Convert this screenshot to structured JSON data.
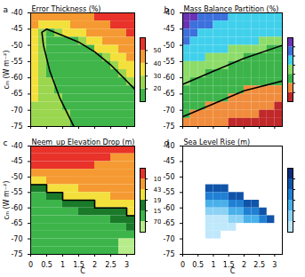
{
  "chart_data": [
    {
      "type": "heatmap",
      "panel_label": "a",
      "title": "Error Thickness (%)",
      "y_label": "cₘ (W m⁻²)",
      "tick_labels": "y",
      "xlim": [
        0,
        3.25
      ],
      "xticks": [
        0,
        0.5,
        1,
        1.5,
        2,
        2.5,
        3
      ],
      "ylim": [
        -75,
        -40
      ],
      "yticks": [
        -75,
        -70,
        -65,
        -60,
        -55,
        -50,
        -45,
        -40
      ],
      "x_edges": [
        0,
        0.25,
        0.5,
        0.75,
        1,
        1.25,
        1.5,
        1.75,
        2,
        2.25,
        2.5,
        2.75,
        3,
        3.25
      ],
      "y_edges": [
        -40,
        -42.5,
        -45,
        -47.5,
        -50,
        -52.5,
        -55,
        -57.5,
        -60,
        -62.5,
        -65,
        -67.5,
        -70,
        -72.5,
        -75
      ],
      "values": [
        [
          45,
          45,
          45,
          45,
          45,
          45,
          45,
          45,
          55,
          55,
          55,
          55,
          55
        ],
        [
          45,
          35,
          35,
          35,
          35,
          45,
          45,
          45,
          45,
          45,
          55,
          55,
          55
        ],
        [
          35,
          25,
          15,
          25,
          35,
          35,
          35,
          45,
          45,
          45,
          45,
          45,
          55
        ],
        [
          35,
          25,
          15,
          15,
          15,
          15,
          25,
          35,
          35,
          45,
          45,
          45,
          45
        ],
        [
          35,
          25,
          15,
          15,
          15,
          15,
          15,
          15,
          35,
          35,
          35,
          45,
          45
        ],
        [
          35,
          25,
          15,
          15,
          15,
          15,
          15,
          15,
          15,
          25,
          35,
          35,
          45
        ],
        [
          35,
          25,
          15,
          15,
          15,
          15,
          15,
          15,
          15,
          15,
          25,
          35,
          35
        ],
        [
          35,
          25,
          15,
          15,
          15,
          15,
          15,
          15,
          15,
          15,
          15,
          25,
          35
        ],
        [
          35,
          25,
          25,
          15,
          15,
          15,
          15,
          15,
          15,
          15,
          15,
          15,
          25
        ],
        [
          35,
          25,
          25,
          15,
          15,
          15,
          15,
          15,
          15,
          15,
          15,
          15,
          15
        ],
        [
          35,
          25,
          25,
          25,
          15,
          15,
          15,
          15,
          15,
          15,
          15,
          15,
          15
        ],
        [
          25,
          25,
          25,
          25,
          15,
          15,
          15,
          15,
          15,
          15,
          15,
          15,
          15
        ],
        [
          25,
          25,
          25,
          25,
          25,
          15,
          15,
          15,
          15,
          15,
          15,
          15,
          15
        ],
        [
          25,
          25,
          25,
          25,
          25,
          15,
          15,
          15,
          15,
          15,
          15,
          15,
          15
        ]
      ],
      "colorbar": {
        "ticks": [
          20,
          30,
          40,
          50
        ],
        "colors": [
          "#3fb54a",
          "#9ad64e",
          "#f4e03c",
          "#f59a32",
          "#e8322a"
        ]
      },
      "contours": [
        {
          "color": "#000000",
          "x": [
            1.35,
            1.2,
            0.9,
            0.6,
            0.4,
            0.35,
            0.5,
            1.0,
            1.5,
            2.0,
            2.5,
            3.0,
            3.25
          ],
          "y": [
            -75,
            -72,
            -66,
            -58,
            -50,
            -46,
            -45,
            -47,
            -49,
            -52,
            -56,
            -61,
            -63.5
          ]
        }
      ]
    },
    {
      "type": "heatmap",
      "panel_label": "b",
      "title": "Mass Balance Partition (%)",
      "tick_labels": "y",
      "xlim": [
        0,
        3.25
      ],
      "xticks": [
        0,
        0.5,
        1,
        1.5,
        2,
        2.5,
        3
      ],
      "ylim": [
        -75,
        -40
      ],
      "yticks": [
        -75,
        -70,
        -65,
        -60,
        -55,
        -50,
        -45,
        -40
      ],
      "x_edges": [
        0,
        0.25,
        0.5,
        0.75,
        1,
        1.25,
        1.5,
        1.75,
        2,
        2.25,
        2.5,
        2.75,
        3,
        3.25
      ],
      "y_edges": [
        -40,
        -42.5,
        -45,
        -47.5,
        -50,
        -52.5,
        -55,
        -57.5,
        -60,
        -62.5,
        -65,
        -67.5,
        -70,
        -72.5,
        -75
      ],
      "values": [
        [
          65,
          65,
          55,
          55,
          55,
          55,
          45,
          45,
          45,
          45,
          45,
          45,
          45
        ],
        [
          65,
          55,
          55,
          55,
          45,
          45,
          45,
          45,
          45,
          45,
          45,
          45,
          45
        ],
        [
          55,
          55,
          45,
          45,
          45,
          45,
          45,
          45,
          45,
          45,
          45,
          45,
          45
        ],
        [
          55,
          45,
          45,
          45,
          45,
          45,
          45,
          45,
          45,
          45,
          35,
          35,
          35
        ],
        [
          45,
          45,
          45,
          45,
          45,
          45,
          35,
          35,
          35,
          35,
          35,
          25,
          25
        ],
        [
          45,
          45,
          45,
          35,
          35,
          35,
          35,
          35,
          25,
          25,
          25,
          25,
          25
        ],
        [
          35,
          35,
          35,
          35,
          35,
          35,
          25,
          25,
          25,
          25,
          25,
          25,
          25
        ],
        [
          35,
          35,
          35,
          25,
          25,
          25,
          25,
          25,
          25,
          25,
          25,
          25,
          25
        ],
        [
          35,
          25,
          25,
          25,
          25,
          25,
          25,
          25,
          25,
          25,
          25,
          25,
          25
        ],
        [
          25,
          25,
          25,
          25,
          25,
          25,
          25,
          25,
          15,
          15,
          15,
          15,
          15
        ],
        [
          25,
          25,
          25,
          25,
          25,
          25,
          15,
          15,
          15,
          15,
          15,
          15,
          15
        ],
        [
          25,
          25,
          25,
          15,
          15,
          15,
          15,
          15,
          15,
          15,
          15,
          15,
          5
        ],
        [
          25,
          15,
          15,
          15,
          15,
          15,
          15,
          15,
          15,
          15,
          5,
          5,
          5
        ],
        [
          15,
          15,
          15,
          15,
          15,
          15,
          5,
          5,
          5,
          5,
          5,
          5,
          5
        ]
      ],
      "colorbar": {
        "ticks": [
          10,
          20,
          30,
          40,
          50,
          60
        ],
        "tick_labels": false,
        "colors": [
          "#c0282a",
          "#f08c3c",
          "#3cb44a",
          "#8ddc6a",
          "#40d0ec",
          "#3c70dc",
          "#6a32b4"
        ]
      },
      "contours": [
        {
          "color": "#000000",
          "x": [
            0,
            1,
            2,
            3.25
          ],
          "y": [
            -62,
            -58,
            -54,
            -50
          ]
        },
        {
          "color": "#000000",
          "x": [
            0,
            1,
            2,
            3.25
          ],
          "y": [
            -72,
            -68,
            -64,
            -61
          ]
        }
      ]
    },
    {
      "type": "heatmap",
      "panel_label": "c",
      "title": "Neem_up Elevation Drop (m)",
      "y_label": "cₘ (W m⁻²)",
      "x_label": "C",
      "xlim": [
        0,
        3.25
      ],
      "xticks": [
        0,
        0.5,
        1,
        1.5,
        2,
        2.5,
        3
      ],
      "ylim": [
        -75,
        -40
      ],
      "yticks": [
        -75,
        -70,
        -65,
        -60,
        -55,
        -50,
        -45,
        -40
      ],
      "x_edges": [
        0,
        0.25,
        0.5,
        0.75,
        1,
        1.25,
        1.5,
        1.75,
        2,
        2.25,
        2.5,
        2.75,
        3,
        3.25
      ],
      "y_edges": [
        -40,
        -42.5,
        -45,
        -47.5,
        -50,
        -52.5,
        -55,
        -57.5,
        -60,
        -62.5,
        -65,
        -67.5,
        -70,
        -72.5,
        -75
      ],
      "values": [
        [
          1200,
          1200,
          1200,
          1200,
          1200,
          1200,
          1200,
          1200,
          1200,
          1200,
          1200,
          1200,
          1200
        ],
        [
          1200,
          1200,
          1200,
          1200,
          1200,
          1200,
          1200,
          1200,
          1200,
          1200,
          700,
          700,
          700
        ],
        [
          1200,
          1200,
          1200,
          1200,
          1200,
          1200,
          1200,
          1200,
          700,
          700,
          700,
          700,
          700
        ],
        [
          700,
          700,
          700,
          700,
          700,
          700,
          700,
          700,
          700,
          700,
          700,
          700,
          700
        ],
        [
          300,
          300,
          700,
          700,
          700,
          700,
          700,
          700,
          700,
          700,
          700,
          700,
          700
        ],
        [
          170,
          170,
          300,
          300,
          300,
          300,
          700,
          700,
          700,
          700,
          700,
          700,
          700
        ],
        [
          100,
          100,
          170,
          170,
          300,
          300,
          300,
          300,
          300,
          300,
          700,
          700,
          700
        ],
        [
          100,
          100,
          100,
          100,
          170,
          170,
          170,
          170,
          300,
          300,
          300,
          300,
          300
        ],
        [
          100,
          100,
          100,
          100,
          100,
          100,
          170,
          170,
          170,
          170,
          170,
          170,
          300
        ],
        [
          100,
          100,
          100,
          100,
          100,
          100,
          100,
          100,
          100,
          100,
          170,
          170,
          170
        ],
        [
          100,
          100,
          100,
          100,
          100,
          100,
          100,
          100,
          100,
          100,
          100,
          100,
          170
        ],
        [
          100,
          100,
          100,
          100,
          100,
          100,
          100,
          100,
          100,
          100,
          100,
          100,
          100
        ],
        [
          100,
          100,
          100,
          100,
          100,
          100,
          100,
          100,
          100,
          100,
          100,
          50,
          50
        ],
        [
          100,
          100,
          100,
          100,
          100,
          100,
          100,
          100,
          100,
          100,
          100,
          50,
          50
        ]
      ],
      "colorbar": {
        "ticks": [
          70,
          150,
          190,
          430,
          1000
        ],
        "colors": [
          "#b6ec8a",
          "#3cb44a",
          "#1a7a2a",
          "#f4e03c",
          "#f59a32",
          "#e8322a"
        ]
      },
      "contours": [
        {
          "color": "#000000",
          "x": [
            0,
            0.5,
            0.5,
            1,
            1,
            2,
            2,
            3,
            3,
            3.25
          ],
          "y": [
            -52.5,
            -52.5,
            -55,
            -55,
            -57.5,
            -57.5,
            -60,
            -60,
            -62.5,
            -62.5
          ]
        }
      ]
    },
    {
      "type": "heatmap",
      "panel_label": "d",
      "title": "Sea Level Rise (m)",
      "x_label": "C",
      "xlim": [
        0,
        3.25
      ],
      "xticks": [
        0,
        0.5,
        1,
        1.5,
        2,
        2.5,
        3
      ],
      "ylim": [
        -75,
        -40
      ],
      "yticks": [
        -75,
        -70,
        -65,
        -60,
        -55,
        -50,
        -45,
        -40
      ],
      "x_edges": [
        0,
        0.25,
        0.5,
        0.75,
        1,
        1.25,
        1.5,
        1.75,
        2,
        2.25,
        2.5,
        2.75,
        3,
        3.25
      ],
      "y_edges": [
        -40,
        -42.5,
        -45,
        -47.5,
        -50,
        -52.5,
        -55,
        -57.5,
        -60,
        -62.5,
        -65,
        -67.5,
        -70,
        -72.5,
        -75
      ],
      "values": [
        [
          null,
          null,
          null,
          null,
          null,
          null,
          null,
          null,
          null,
          null,
          null,
          null,
          null
        ],
        [
          null,
          null,
          null,
          null,
          null,
          null,
          null,
          null,
          null,
          null,
          null,
          null,
          null
        ],
        [
          null,
          null,
          null,
          null,
          null,
          null,
          null,
          null,
          null,
          null,
          null,
          null,
          null
        ],
        [
          null,
          null,
          null,
          null,
          null,
          null,
          null,
          null,
          null,
          null,
          null,
          null,
          null
        ],
        [
          null,
          null,
          null,
          null,
          null,
          null,
          null,
          null,
          null,
          null,
          null,
          null,
          null
        ],
        [
          null,
          null,
          null,
          4.5,
          4.5,
          4.5,
          null,
          null,
          null,
          null,
          null,
          null,
          null
        ],
        [
          null,
          null,
          null,
          3.5,
          3.5,
          3.5,
          4.5,
          4.5,
          null,
          null,
          null,
          null,
          null
        ],
        [
          null,
          null,
          null,
          2.5,
          2.5,
          2.5,
          3.5,
          3.5,
          4.5,
          4.5,
          null,
          null,
          null
        ],
        [
          null,
          null,
          null,
          1.5,
          1.5,
          1.5,
          2.5,
          2.5,
          3.5,
          3.5,
          4.5,
          null,
          null
        ],
        [
          null,
          null,
          null,
          0.5,
          0.5,
          0.5,
          1.5,
          1.5,
          2.5,
          2.5,
          3.5,
          4.5,
          null
        ],
        [
          null,
          null,
          null,
          0.5,
          0.5,
          0.5,
          0.5,
          null,
          null,
          null,
          null,
          null,
          null
        ],
        [
          null,
          null,
          null,
          0.5,
          0.5,
          null,
          null,
          null,
          null,
          null,
          null,
          null,
          null
        ],
        [
          null,
          null,
          null,
          null,
          null,
          null,
          null,
          null,
          null,
          null,
          null,
          null,
          null
        ],
        [
          null,
          null,
          null,
          null,
          null,
          null,
          null,
          null,
          null,
          null,
          null,
          null,
          null
        ]
      ],
      "colorbar": {
        "ticks": [
          1,
          2,
          3,
          4,
          5
        ],
        "tick_labels": false,
        "colors": [
          "#bfe8fb",
          "#8cd2f5",
          "#4ab0ea",
          "#2080d4",
          "#1054aa",
          "#0a2c7a"
        ]
      }
    }
  ]
}
